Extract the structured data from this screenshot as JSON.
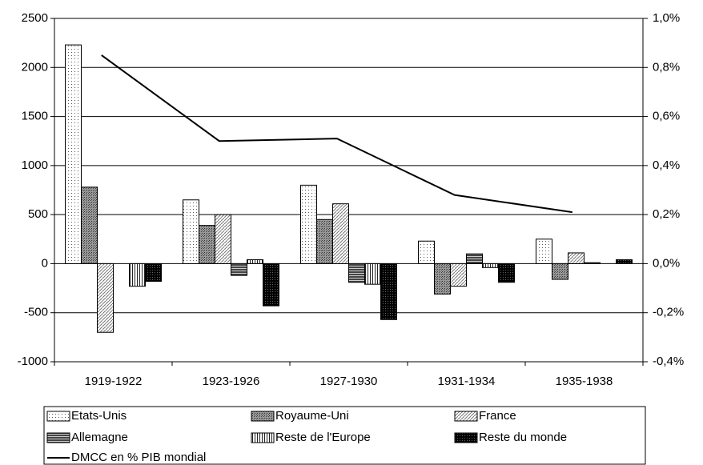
{
  "chart_data": {
    "type": "bar",
    "categories": [
      "1919-1922",
      "1923-1926",
      "1927-1930",
      "1931-1934",
      "1935-1938"
    ],
    "ylim": [
      -1000,
      2500
    ],
    "yticks": [
      -1000,
      -500,
      0,
      500,
      1000,
      1500,
      2000,
      2500
    ],
    "y2lim": [
      -0.4,
      1.0
    ],
    "y2ticks": [
      {
        "value": -0.4,
        "label": "-0,4%"
      },
      {
        "value": -0.2,
        "label": "-0,2%"
      },
      {
        "value": 0,
        "label": "0,0%"
      },
      {
        "value": 0.2,
        "label": "0,2%"
      },
      {
        "value": 0.4,
        "label": "0,4%"
      },
      {
        "value": 0.6,
        "label": "0,6%"
      },
      {
        "value": 0.8,
        "label": "0,8%"
      },
      {
        "value": 1.0,
        "label": "1,0%"
      }
    ],
    "grid": true,
    "series": [
      {
        "name": "Etats-Unis",
        "color": "#ffffff",
        "pattern": "dots",
        "values": [
          2230,
          650,
          800,
          230,
          250
        ]
      },
      {
        "name": "Royaume-Uni",
        "color": "#808080",
        "pattern": "darkdots",
        "values": [
          780,
          390,
          450,
          -310,
          -160
        ]
      },
      {
        "name": "France",
        "color": "#ffffff",
        "pattern": "diagonal",
        "values": [
          -700,
          500,
          610,
          -230,
          110
        ]
      },
      {
        "name": "Allemagne",
        "color": "#606060",
        "pattern": "horizontal",
        "values": [
          null,
          -120,
          -190,
          100,
          10
        ]
      },
      {
        "name": "Reste de l'Europe",
        "color": "#ffffff",
        "pattern": "vertical",
        "values": [
          -230,
          40,
          -210,
          -40,
          null
        ]
      },
      {
        "name": "Reste du monde",
        "color": "#000000",
        "pattern": "solid-dots",
        "values": [
          -180,
          -430,
          -570,
          -190,
          40
        ]
      },
      {
        "name": "DMCC en % PIB mondial",
        "type": "line",
        "axis": "y2",
        "color": "#000000",
        "values": [
          0.85,
          0.5,
          0.51,
          0.28,
          0.21
        ]
      }
    ]
  }
}
